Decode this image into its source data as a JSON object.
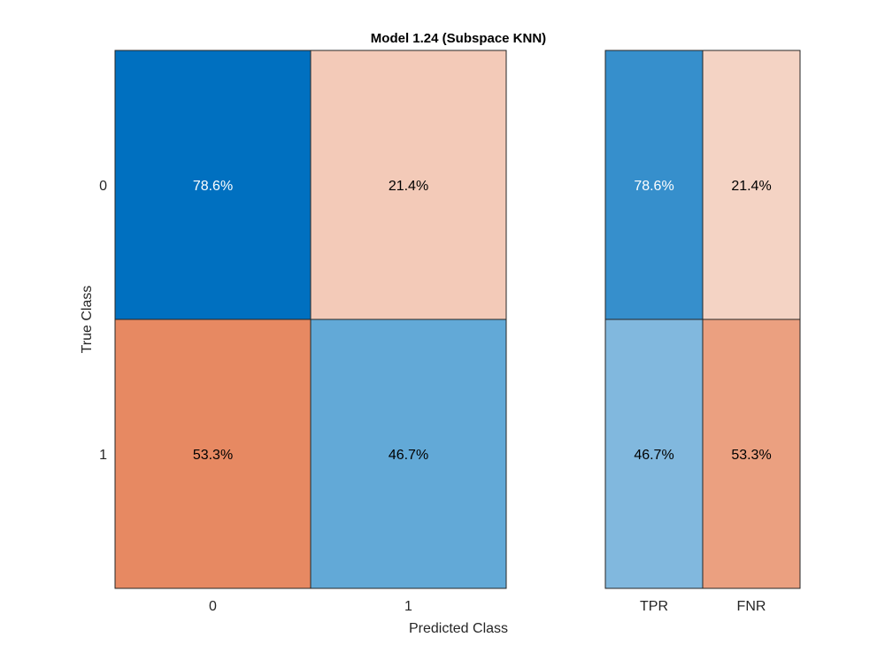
{
  "chart_data": {
    "type": "heatmap",
    "title": "Model 1.24 (Subspace KNN)",
    "xlabel": "Predicted Class",
    "ylabel": "True Class",
    "row_labels": [
      "0",
      "1"
    ],
    "col_labels": [
      "0",
      "1"
    ],
    "matrix": {
      "values": [
        [
          78.6,
          21.4
        ],
        [
          53.3,
          46.7
        ]
      ],
      "labels": [
        [
          "78.6%",
          "21.4%"
        ],
        [
          "53.3%",
          "46.7%"
        ]
      ],
      "colors": [
        [
          "#0070C0",
          "#F3CAB8"
        ],
        [
          "#E78962",
          "#62A9D7"
        ]
      ],
      "text_colors": [
        [
          "#FFFFFF",
          "#000000"
        ],
        [
          "#000000",
          "#000000"
        ]
      ]
    },
    "rates": {
      "col_labels": [
        "TPR",
        "FNR"
      ],
      "values": [
        [
          78.6,
          21.4
        ],
        [
          46.7,
          53.3
        ]
      ],
      "labels": [
        [
          "78.6%",
          "21.4%"
        ],
        [
          "46.7%",
          "53.3%"
        ]
      ],
      "colors": [
        [
          "#368FCC",
          "#F4D3C4"
        ],
        [
          "#81B8DE",
          "#EBA080"
        ]
      ],
      "text_colors": [
        [
          "#FFFFFF",
          "#000000"
        ],
        [
          "#000000",
          "#000000"
        ]
      ]
    }
  }
}
